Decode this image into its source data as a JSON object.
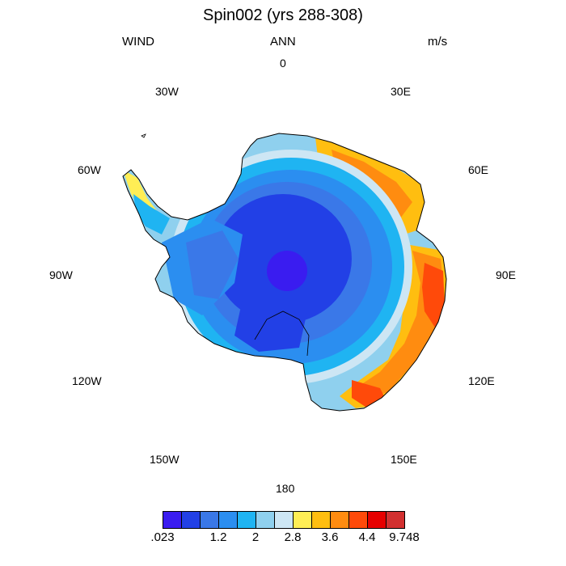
{
  "title": "Spin002 (yrs 288-308)",
  "left_string": "WIND",
  "center_string": "ANN",
  "right_string": "m/s",
  "lon_labels": {
    "0": "0",
    "30E": "30E",
    "60E": "60E",
    "90E": "90E",
    "120E": "120E",
    "150E": "150E",
    "180": "180",
    "150W": "150W",
    "120W": "120W",
    "90W": "90W",
    "60W": "60W",
    "30W": "30W"
  },
  "colorbar": {
    "colors": [
      "#3a1cf0",
      "#2240e6",
      "#3a78e8",
      "#2b8ef0",
      "#1fb4f2",
      "#8fd0ee",
      "#cde6f4",
      "#ffee55",
      "#ffbe10",
      "#ff8c10",
      "#ff4a0a",
      "#e60000",
      "#d23030"
    ],
    "labels": [
      ".023",
      "1.2",
      "2",
      "2.8",
      "3.6",
      "4.4",
      "9.748"
    ]
  },
  "field": {
    "description_levels": [
      "#3a1cf0",
      "#2240e6",
      "#3a78e8",
      "#2b8ef0",
      "#1fb4f2",
      "#8fd0ee",
      "#cde6f4",
      "#ffee55",
      "#ffbe10",
      "#ff8c10",
      "#ff4a0a",
      "#e60000"
    ]
  }
}
